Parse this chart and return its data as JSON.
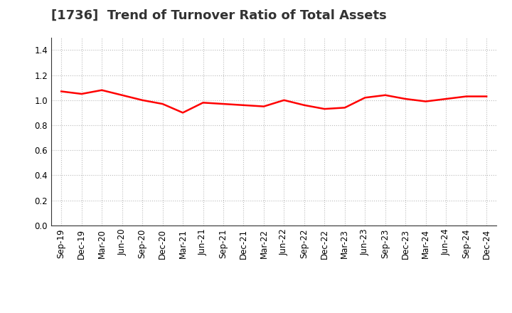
{
  "title": "[1736]  Trend of Turnover Ratio of Total Assets",
  "x_labels": [
    "Sep-19",
    "Dec-19",
    "Mar-20",
    "Jun-20",
    "Sep-20",
    "Dec-20",
    "Mar-21",
    "Jun-21",
    "Sep-21",
    "Dec-21",
    "Mar-22",
    "Jun-22",
    "Sep-22",
    "Dec-22",
    "Mar-23",
    "Jun-23",
    "Sep-23",
    "Dec-23",
    "Mar-24",
    "Jun-24",
    "Sep-24",
    "Dec-24"
  ],
  "y_values": [
    1.07,
    1.05,
    1.08,
    1.04,
    1.0,
    0.97,
    0.9,
    0.98,
    0.97,
    0.96,
    0.95,
    1.0,
    0.96,
    0.93,
    0.94,
    1.02,
    1.04,
    1.01,
    0.99,
    1.01,
    1.03,
    1.03
  ],
  "line_color": "#ff0000",
  "line_width": 1.8,
  "ylim": [
    0.0,
    1.5
  ],
  "yticks": [
    0.0,
    0.2,
    0.4,
    0.6,
    0.8,
    1.0,
    1.2,
    1.4
  ],
  "grid_color": "#bbbbbb",
  "grid_style": "dotted",
  "background_color": "#ffffff",
  "title_fontsize": 13,
  "tick_fontsize": 8.5
}
